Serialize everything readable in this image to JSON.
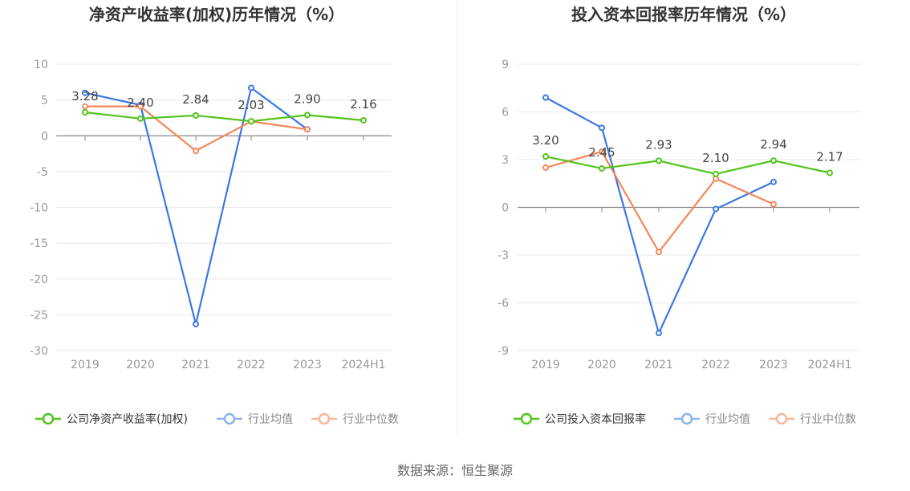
{
  "chart_data": [
    {
      "type": "line",
      "title": "净资产收益率(加权)历年情况（%）",
      "categories": [
        "2019",
        "2020",
        "2021",
        "2022",
        "2023",
        "2024H1"
      ],
      "ylim": [
        -30,
        10
      ],
      "yticks": [
        10,
        5,
        0,
        -5,
        -10,
        -15,
        -20,
        -25,
        -30
      ],
      "grid": true,
      "legend_position": "bottom",
      "series": [
        {
          "name": "公司净资产收益率(加权)",
          "color": "#52c41a",
          "values": [
            3.28,
            2.4,
            2.84,
            2.03,
            2.9,
            2.16
          ],
          "labels": [
            "3.28",
            "2.40",
            "2.84",
            "2.03",
            "2.90",
            "2.16"
          ]
        },
        {
          "name": "行业均值",
          "color": "#3b78e0",
          "values": [
            6.0,
            4.3,
            -26.3,
            6.7,
            0.9,
            null
          ]
        },
        {
          "name": "行业中位数",
          "color": "#f4875a",
          "values": [
            4.1,
            4.1,
            -2.1,
            2.0,
            0.9,
            null
          ]
        }
      ]
    },
    {
      "type": "line",
      "title": "投入资本回报率历年情况（%）",
      "categories": [
        "2019",
        "2020",
        "2021",
        "2022",
        "2023",
        "2024H1"
      ],
      "ylim": [
        -9,
        9
      ],
      "yticks": [
        9,
        6,
        3,
        0,
        -3,
        -6,
        -9
      ],
      "grid": true,
      "legend_position": "bottom",
      "series": [
        {
          "name": "公司投入资本回报率",
          "color": "#52c41a",
          "values": [
            3.2,
            2.45,
            2.93,
            2.1,
            2.94,
            2.17
          ],
          "labels": [
            "3.20",
            "2.45",
            "2.93",
            "2.10",
            "2.94",
            "2.17"
          ]
        },
        {
          "name": "行业均值",
          "color": "#3b78e0",
          "values": [
            6.9,
            5.0,
            -7.9,
            -0.1,
            1.6,
            null
          ]
        },
        {
          "name": "行业中位数",
          "color": "#f4875a",
          "values": [
            2.5,
            3.5,
            -2.8,
            1.8,
            0.2,
            null
          ]
        }
      ]
    }
  ],
  "footer": {
    "source": "数据来源：恒生聚源"
  }
}
